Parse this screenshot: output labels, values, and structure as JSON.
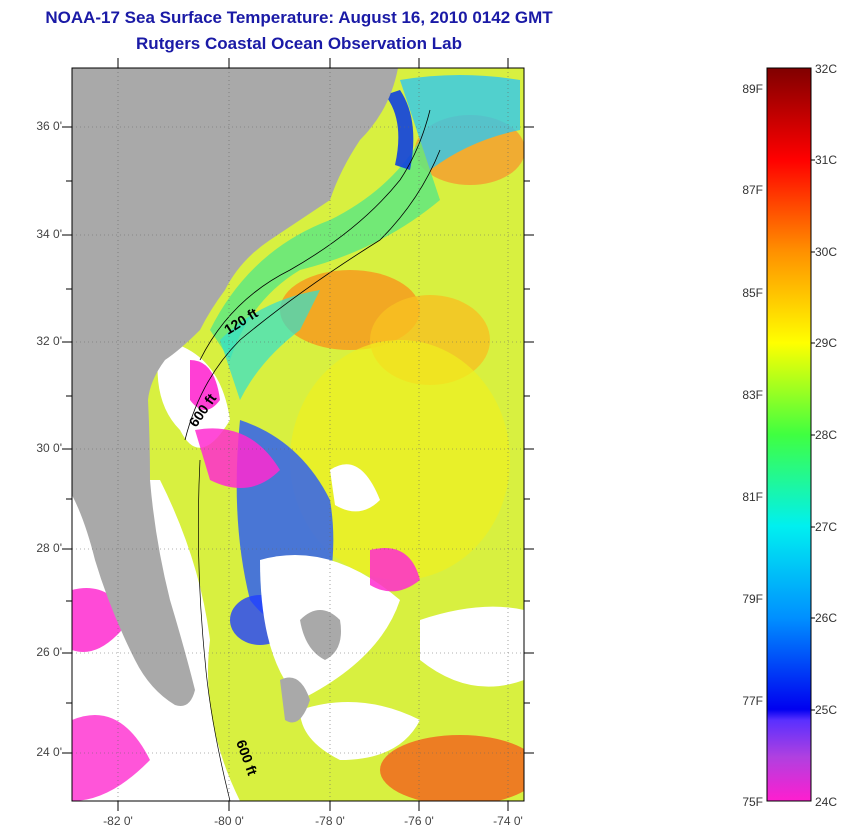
{
  "title": {
    "line1": "NOAA-17 Sea Surface Temperature:  August 16, 2010 0142 GMT",
    "line2": "Rutgers Coastal Ocean Observation Lab"
  },
  "map": {
    "lat_labels": [
      "36 0'",
      "34 0'",
      "32 0'",
      "30 0'",
      "28 0'",
      "26 0'",
      "24 0'"
    ],
    "lon_labels": [
      "-82 0'",
      "-80 0'",
      "-78 0'",
      "-76 0'",
      "-74 0'"
    ],
    "isobath_labels": [
      "120 ft",
      "600 ft",
      "600 ft"
    ],
    "colors": {
      "land": "#a9a9a9",
      "cloud": "#ffffff",
      "frame": "#000000"
    }
  },
  "colorbar": {
    "fahrenheit": [
      "89F",
      "87F",
      "85F",
      "83F",
      "81F",
      "79F",
      "77F",
      "75F"
    ],
    "celsius": [
      "32C",
      "31C",
      "30C",
      "29C",
      "28C",
      "27C",
      "26C",
      "25C",
      "24C"
    ],
    "range_celsius": [
      24,
      32
    ]
  }
}
